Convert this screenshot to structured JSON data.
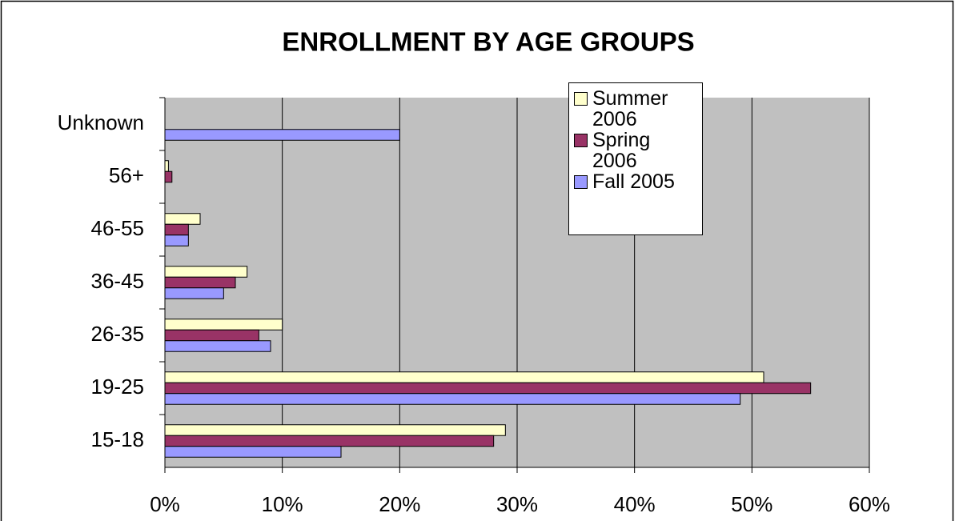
{
  "chart_data": {
    "type": "bar",
    "orientation": "horizontal",
    "title": "ENROLLMENT BY AGE GROUPS",
    "categories": [
      "15-18",
      "19-25",
      "26-35",
      "36-45",
      "46-55",
      "56+",
      "Unknown"
    ],
    "series": [
      {
        "name": "Summer 2006",
        "color": "#ffffcc",
        "values": [
          29,
          51,
          10,
          7,
          3,
          0.3,
          null
        ]
      },
      {
        "name": "Spring 2006",
        "color": "#993366",
        "values": [
          28,
          55,
          8,
          6,
          2,
          0.6,
          null
        ]
      },
      {
        "name": "Fall 2005",
        "color": "#9999ff",
        "values": [
          15,
          49,
          9,
          5,
          2,
          null,
          20
        ]
      }
    ],
    "xlim": [
      0,
      60
    ],
    "xticks": [
      {
        "value": 0,
        "label": "0%"
      },
      {
        "value": 10,
        "label": "10%"
      },
      {
        "value": 20,
        "label": "20%"
      },
      {
        "value": 30,
        "label": "30%"
      },
      {
        "value": 40,
        "label": "40%"
      },
      {
        "value": 50,
        "label": "50%"
      },
      {
        "value": 60,
        "label": "60%"
      }
    ],
    "grid": true,
    "legend": "top-right",
    "plot_background": "#c0c0c0"
  }
}
